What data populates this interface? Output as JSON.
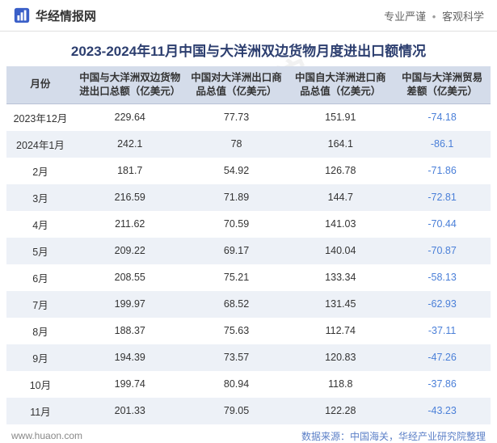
{
  "header": {
    "site_name": "华经情报网",
    "tagline_1": "专业严谨",
    "tagline_2": "客观科学"
  },
  "title": "2023-2024年11月中国与大洋洲双边货物月度进出口额情况",
  "watermark_text": "华经产业研究院",
  "table": {
    "columns": [
      "月份",
      "中国与大洋洲双边货物进出口总额（亿美元）",
      "中国对大洋洲出口商品总值（亿美元）",
      "中国自大洋洲进口商品总值（亿美元）",
      "中国与大洋洲贸易差额（亿美元）"
    ],
    "col_widths": [
      "14%",
      "23%",
      "21%",
      "22%",
      "20%"
    ],
    "rows": [
      {
        "month": "2023年12月",
        "total": "229.64",
        "export": "77.73",
        "import": "151.91",
        "balance": "-74.18"
      },
      {
        "month": "2024年1月",
        "total": "242.1",
        "export": "78",
        "import": "164.1",
        "balance": "-86.1"
      },
      {
        "month": "2月",
        "total": "181.7",
        "export": "54.92",
        "import": "126.78",
        "balance": "-71.86"
      },
      {
        "month": "3月",
        "total": "216.59",
        "export": "71.89",
        "import": "144.7",
        "balance": "-72.81"
      },
      {
        "month": "4月",
        "total": "211.62",
        "export": "70.59",
        "import": "141.03",
        "balance": "-70.44"
      },
      {
        "month": "5月",
        "total": "209.22",
        "export": "69.17",
        "import": "140.04",
        "balance": "-70.87"
      },
      {
        "month": "6月",
        "total": "208.55",
        "export": "75.21",
        "import": "133.34",
        "balance": "-58.13"
      },
      {
        "month": "7月",
        "total": "199.97",
        "export": "68.52",
        "import": "131.45",
        "balance": "-62.93"
      },
      {
        "month": "8月",
        "total": "188.37",
        "export": "75.63",
        "import": "112.74",
        "balance": "-37.11"
      },
      {
        "month": "9月",
        "total": "194.39",
        "export": "73.57",
        "import": "120.83",
        "balance": "-47.26"
      },
      {
        "month": "10月",
        "total": "199.74",
        "export": "80.94",
        "import": "118.8",
        "balance": "-37.86"
      },
      {
        "month": "11月",
        "total": "201.33",
        "export": "79.05",
        "import": "122.28",
        "balance": "-43.23"
      }
    ]
  },
  "footer": {
    "url": "www.huaon.com",
    "source": "数据来源：中国海关，华经产业研究院整理"
  },
  "colors": {
    "title_color": "#2c3e6f",
    "header_bg": "#d4dcea",
    "row_even_bg": "#edf1f7",
    "row_odd_bg": "#ffffff",
    "negative_color": "#4a7fd8",
    "footer_source_color": "#5b7fc7",
    "watermark_color": "rgba(200,200,200,0.25)"
  }
}
